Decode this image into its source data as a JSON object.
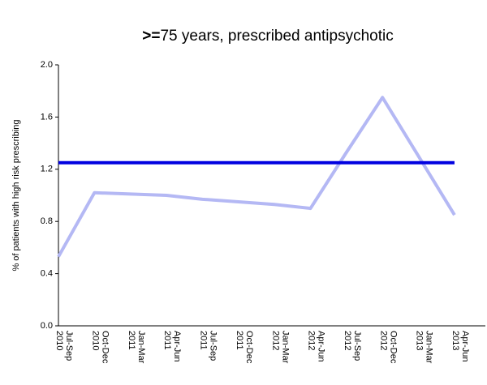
{
  "chart_data": {
    "type": "line",
    "title": [
      ">=",
      "75 years, prescribed antipsychotic"
    ],
    "y_label": "% of patients with high risk prescribing",
    "categories": [
      [
        "Jul-Sep",
        "2010"
      ],
      [
        "Oct-Dec",
        "2010"
      ],
      [
        "Jan-Mar",
        "2011"
      ],
      [
        "Apr-Jun",
        "2011"
      ],
      [
        "Jul-Sep",
        "2011"
      ],
      [
        "Oct-Dec",
        "2011"
      ],
      [
        "Jan-Mar",
        "2012"
      ],
      [
        "Apr-Jun",
        "2012"
      ],
      [
        "Jul-Sep",
        "2012"
      ],
      [
        "Oct-Dec",
        "2012"
      ],
      [
        "Jan-Mar",
        "2013"
      ],
      [
        "Apr-Jun",
        "2013"
      ]
    ],
    "series": [
      {
        "color": "#b4b8f4",
        "values": [
          0.53,
          1.02,
          1.01,
          1.0,
          0.97,
          0.95,
          0.93,
          0.9,
          1.33,
          1.75,
          1.3,
          0.85
        ]
      },
      {
        "color": "#0000e0",
        "values": [
          1.25,
          1.25,
          1.25,
          1.25,
          1.25,
          1.25,
          1.25,
          1.25,
          1.25,
          1.25,
          1.25,
          1.25
        ]
      }
    ],
    "ylim": [
      0,
      2
    ],
    "yticks": [
      {
        "value": 0,
        "label": "0.0"
      },
      {
        "value": 0.4,
        "label": "0.4"
      },
      {
        "value": 0.8,
        "label": "0.8"
      },
      {
        "value": 1.2,
        "label": "1.2"
      },
      {
        "value": 1.6,
        "label": "1.6"
      },
      {
        "value": 2,
        "label": "2.0"
      }
    ]
  }
}
